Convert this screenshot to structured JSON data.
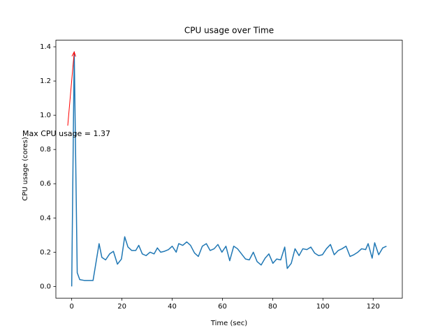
{
  "chart_data": {
    "type": "line",
    "title": "CPU usage over Time",
    "x_label": "Time (sec)",
    "y_label": "CPU usage (cores)",
    "x": [
      0,
      1,
      2.2,
      3.2,
      5,
      8.5,
      10.9,
      12.0,
      13.5,
      15.1,
      16.6,
      18.2,
      19.8,
      21.1,
      22.4,
      23.9,
      25.5,
      26.7,
      28.1,
      29.6,
      31.2,
      32.8,
      34.1,
      35.4,
      36.9,
      38.5,
      40.0,
      41.6,
      42.6,
      44.2,
      45.8,
      47.3,
      48.9,
      50.4,
      52.0,
      53.6,
      55.1,
      56.7,
      58.2,
      59.8,
      61.4,
      62.9,
      64.5,
      66.0,
      67.6,
      69.2,
      70.7,
      72.3,
      73.8,
      75.4,
      77.0,
      78.5,
      80.1,
      81.6,
      83.2,
      84.8,
      85.8,
      87.4,
      88.9,
      90.5,
      92.0,
      93.6,
      95.2,
      96.7,
      98.3,
      99.8,
      101.4,
      103.0,
      104.5,
      106.1,
      107.6,
      109.2,
      110.8,
      112.3,
      113.9,
      115.4,
      117.0,
      118.0,
      119.6,
      120.6,
      122.2,
      123.8,
      125.3
    ],
    "series": [
      {
        "name": "CPU usage",
        "color": "#1f77b4",
        "values": [
          0,
          1.37,
          0.08,
          0.04,
          0.035,
          0.035,
          0.25,
          0.17,
          0.155,
          0.19,
          0.205,
          0.13,
          0.16,
          0.29,
          0.23,
          0.21,
          0.21,
          0.24,
          0.19,
          0.18,
          0.2,
          0.19,
          0.225,
          0.2,
          0.205,
          0.215,
          0.235,
          0.2,
          0.25,
          0.24,
          0.26,
          0.24,
          0.195,
          0.175,
          0.235,
          0.25,
          0.21,
          0.22,
          0.245,
          0.2,
          0.235,
          0.15,
          0.235,
          0.22,
          0.19,
          0.16,
          0.155,
          0.2,
          0.145,
          0.125,
          0.165,
          0.19,
          0.135,
          0.16,
          0.155,
          0.23,
          0.105,
          0.135,
          0.22,
          0.18,
          0.22,
          0.215,
          0.23,
          0.195,
          0.18,
          0.185,
          0.22,
          0.245,
          0.185,
          0.21,
          0.22,
          0.235,
          0.175,
          0.185,
          0.2,
          0.22,
          0.215,
          0.25,
          0.165,
          0.255,
          0.185,
          0.225,
          0.235
        ]
      }
    ],
    "annotation": {
      "text": "Max CPU usage = 1.37",
      "color": "red"
    },
    "xlim": [
      -6.3,
      131.6
    ],
    "ylim": [
      -0.0685,
      1.4385
    ],
    "xticks": [
      0,
      20,
      40,
      60,
      80,
      100,
      120
    ],
    "yticks": [
      {
        "value": 0,
        "label": "0.0"
      },
      0.2,
      0.4,
      0.6,
      0.8,
      {
        "value": 1,
        "label": "1.0"
      },
      1.2,
      1.4
    ],
    "grid": false
  }
}
